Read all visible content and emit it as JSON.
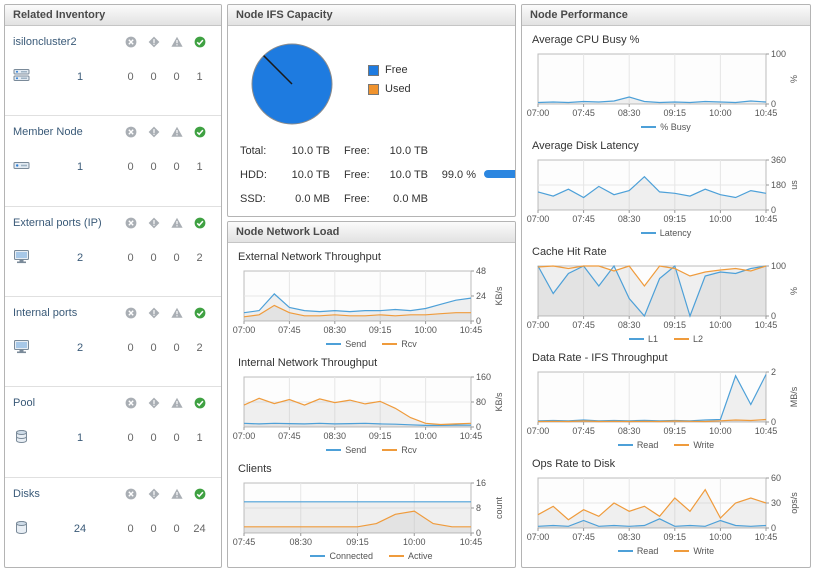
{
  "inventory": {
    "title": "Related Inventory",
    "status_icons": [
      "error-icon",
      "fatal-icon",
      "warning-icon",
      "normal-icon"
    ],
    "rows": [
      {
        "name": "isiloncluster2",
        "icon": "cluster-icon",
        "count": "1",
        "statuses": [
          "0",
          "0",
          "0",
          "1"
        ]
      },
      {
        "name": "Member Node",
        "icon": "node-icon",
        "count": "1",
        "statuses": [
          "0",
          "0",
          "0",
          "1"
        ]
      },
      {
        "name": "External ports (IP)",
        "icon": "port-icon",
        "count": "2",
        "statuses": [
          "0",
          "0",
          "0",
          "2"
        ]
      },
      {
        "name": "Internal ports",
        "icon": "port-icon",
        "count": "2",
        "statuses": [
          "0",
          "0",
          "0",
          "2"
        ]
      },
      {
        "name": "Pool",
        "icon": "pool-icon",
        "count": "1",
        "statuses": [
          "0",
          "0",
          "0",
          "1"
        ]
      },
      {
        "name": "Disks",
        "icon": "disk-icon",
        "count": "24",
        "statuses": [
          "0",
          "0",
          "0",
          "24"
        ]
      }
    ]
  },
  "capacity": {
    "title": "Node IFS Capacity",
    "legend": [
      {
        "label": "Free",
        "color": "#1e7be0"
      },
      {
        "label": "Used",
        "color": "#f0932e"
      }
    ],
    "pie": {
      "free_pct": 99.0,
      "used_pct": 1.0,
      "free_color": "#1e7be0",
      "line_color": "#1a1a1a"
    },
    "rows": [
      {
        "label": "Total:",
        "value": "10.0 TB",
        "free_label": "Free:",
        "free_value": "10.0 TB",
        "pct": "",
        "bar": false
      },
      {
        "label": "HDD:",
        "value": "10.0 TB",
        "free_label": "Free:",
        "free_value": "10.0 TB",
        "pct": "99.0 %",
        "bar": true,
        "bar_pct": 99,
        "bar_color": "#2b86e0"
      },
      {
        "label": "SSD:",
        "value": "0.0 MB",
        "free_label": "Free:",
        "free_value": "0.0 MB",
        "pct": "",
        "bar": false
      }
    ]
  },
  "network": {
    "title": "Node Network Load",
    "charts": [
      0,
      1,
      2
    ]
  },
  "performance": {
    "title": "Node Performance",
    "charts": [
      3,
      4,
      5,
      6,
      7
    ]
  },
  "chart_data": [
    {
      "type": "line",
      "title": "External Network Throughput",
      "unit": "KB/s",
      "ymax": 48,
      "yticks": [
        0,
        24,
        48
      ],
      "xlabels": [
        "07:00",
        "07:45",
        "08:30",
        "09:15",
        "10:00",
        "10:45"
      ],
      "series": [
        {
          "name": "Send",
          "color": "#4da0d8",
          "values": [
            8,
            10,
            26,
            13,
            10,
            9,
            10,
            9,
            10,
            10,
            11,
            10,
            12,
            16,
            20,
            22
          ]
        },
        {
          "name": "Rcv",
          "color": "#ef9b3c",
          "values": [
            4,
            6,
            15,
            8,
            5,
            5,
            6,
            5,
            5,
            6,
            5,
            6,
            6,
            7,
            8,
            8
          ]
        }
      ]
    },
    {
      "type": "line",
      "title": "Internal Network Throughput",
      "unit": "KB/s",
      "ymax": 160,
      "yticks": [
        0,
        80,
        160
      ],
      "xlabels": [
        "07:00",
        "07:45",
        "08:30",
        "09:15",
        "10:00",
        "10:45"
      ],
      "series": [
        {
          "name": "Send",
          "color": "#4da0d8",
          "values": [
            12,
            10,
            12,
            11,
            10,
            12,
            10,
            11,
            12,
            10,
            9,
            7,
            5,
            5,
            6,
            6
          ]
        },
        {
          "name": "Rcv",
          "color": "#ef9b3c",
          "values": [
            70,
            92,
            75,
            88,
            70,
            90,
            78,
            86,
            74,
            82,
            60,
            30,
            12,
            8,
            10,
            12
          ]
        }
      ]
    },
    {
      "type": "line",
      "title": "Clients",
      "unit": "count",
      "ymax": 16,
      "yticks": [
        0,
        8,
        16
      ],
      "xlabels": [
        "07:45",
        "08:30",
        "09:15",
        "10:00",
        "10:45"
      ],
      "series": [
        {
          "name": "Connected",
          "color": "#4da0d8",
          "values": [
            10,
            10,
            10,
            10,
            10,
            10,
            10,
            10,
            10,
            10,
            10,
            10,
            10
          ]
        },
        {
          "name": "Active",
          "color": "#ef9b3c",
          "values": [
            2,
            2,
            2,
            2,
            2,
            2,
            2,
            3,
            6,
            7,
            3,
            2,
            2
          ]
        }
      ]
    },
    {
      "type": "line",
      "title": "Average CPU Busy %",
      "unit": "%",
      "ymax": 100,
      "yticks": [
        0,
        100
      ],
      "xlabels": [
        "07:00",
        "07:45",
        "08:30",
        "09:15",
        "10:00",
        "10:45"
      ],
      "series": [
        {
          "name": "% Busy",
          "color": "#4da0d8",
          "values": [
            3,
            4,
            3,
            5,
            4,
            6,
            14,
            5,
            3,
            4,
            3,
            5,
            4,
            3,
            6,
            4
          ]
        }
      ]
    },
    {
      "type": "line",
      "title": "Average Disk Latency",
      "unit": "us",
      "ymax": 360,
      "yticks": [
        0,
        180,
        360
      ],
      "xlabels": [
        "07:00",
        "07:45",
        "08:30",
        "09:15",
        "10:00",
        "10:45"
      ],
      "series": [
        {
          "name": "Latency",
          "color": "#4da0d8",
          "values": [
            130,
            100,
            150,
            90,
            170,
            110,
            140,
            240,
            130,
            120,
            100,
            150,
            110,
            90,
            140,
            120
          ]
        }
      ]
    },
    {
      "type": "line",
      "title": "Cache Hit Rate",
      "unit": "%",
      "ymax": 100,
      "yticks": [
        0,
        100
      ],
      "xlabels": [
        "07:00",
        "07:45",
        "08:30",
        "09:15",
        "10:00",
        "10:45"
      ],
      "series": [
        {
          "name": "L1",
          "color": "#4da0d8",
          "values": [
            100,
            45,
            85,
            100,
            60,
            100,
            35,
            0,
            75,
            100,
            0,
            80,
            88,
            85,
            95,
            100
          ]
        },
        {
          "name": "L2",
          "color": "#ef9b3c",
          "values": [
            98,
            100,
            95,
            100,
            100,
            90,
            100,
            60,
            100,
            95,
            80,
            88,
            92,
            95,
            90,
            100
          ]
        }
      ]
    },
    {
      "type": "line",
      "title": "Data Rate - IFS Throughput",
      "unit": "MB/s",
      "ymax": 2,
      "yticks": [
        0,
        2
      ],
      "xlabels": [
        "07:00",
        "07:45",
        "08:30",
        "09:15",
        "10:00",
        "10:45"
      ],
      "series": [
        {
          "name": "Read",
          "color": "#4da0d8",
          "values": [
            0.05,
            0.06,
            0.05,
            0.08,
            0.05,
            0.06,
            0.05,
            0.07,
            0.05,
            0.06,
            0.05,
            0.08,
            0.1,
            1.85,
            0.7,
            1.9
          ]
        },
        {
          "name": "Write",
          "color": "#ef9b3c",
          "values": [
            0.02,
            0.03,
            0.02,
            0.04,
            0.02,
            0.03,
            0.02,
            0.03,
            0.02,
            0.04,
            0.03,
            0.02,
            0.05,
            0.08,
            0.06,
            0.1
          ]
        }
      ]
    },
    {
      "type": "line",
      "title": "Ops Rate to Disk",
      "unit": "ops/s",
      "ymax": 60,
      "yticks": [
        0,
        30,
        60
      ],
      "xlabels": [
        "07:00",
        "07:45",
        "08:30",
        "09:15",
        "10:00",
        "10:45"
      ],
      "series": [
        {
          "name": "Read",
          "color": "#4da0d8",
          "values": [
            2,
            3,
            2,
            9,
            2,
            3,
            2,
            3,
            11,
            2,
            3,
            2,
            9,
            3,
            2,
            3
          ]
        },
        {
          "name": "Write",
          "color": "#ef9b3c",
          "values": [
            16,
            26,
            10,
            22,
            14,
            30,
            20,
            26,
            14,
            36,
            20,
            46,
            12,
            30,
            36,
            30
          ]
        }
      ]
    }
  ]
}
